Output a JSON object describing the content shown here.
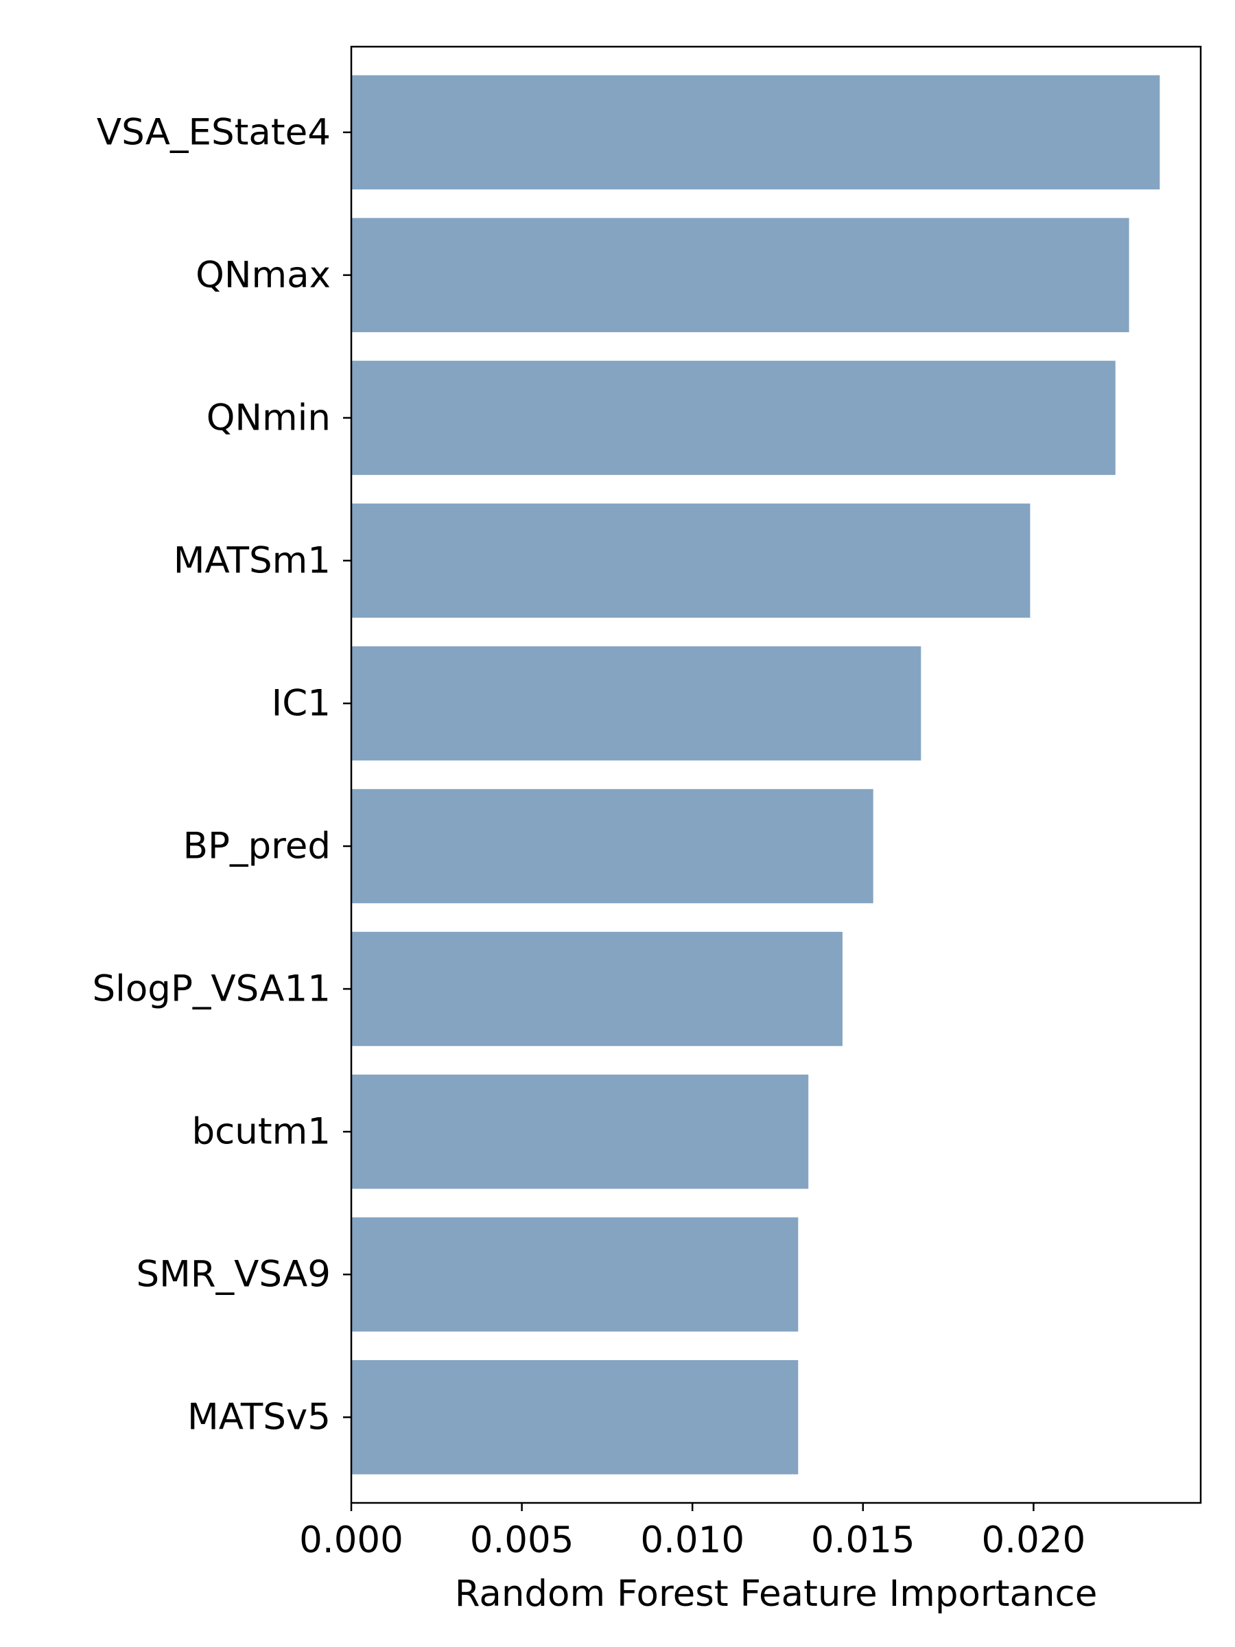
{
  "chart_data": {
    "type": "bar",
    "orientation": "horizontal",
    "title": "",
    "xlabel": "Random Forest Feature Importance",
    "ylabel": "",
    "xlim": [
      0,
      0.0249
    ],
    "x_ticks": [
      "0.000",
      "0.005",
      "0.010",
      "0.015",
      "0.020"
    ],
    "x_tick_values": [
      0,
      0.005,
      0.01,
      0.015,
      0.02
    ],
    "categories": [
      "VSA_EState4",
      "QNmax",
      "QNmin",
      "MATSm1",
      "IC1",
      "BP_pred",
      "SlogP_VSA11",
      "bcutm1",
      "SMR_VSA9",
      "MATSv5"
    ],
    "values": [
      0.0237,
      0.0228,
      0.0224,
      0.0199,
      0.0167,
      0.0153,
      0.0144,
      0.0134,
      0.0131,
      0.0131
    ],
    "bar_color": "#84a4c2",
    "grid": false,
    "legend": "none"
  }
}
